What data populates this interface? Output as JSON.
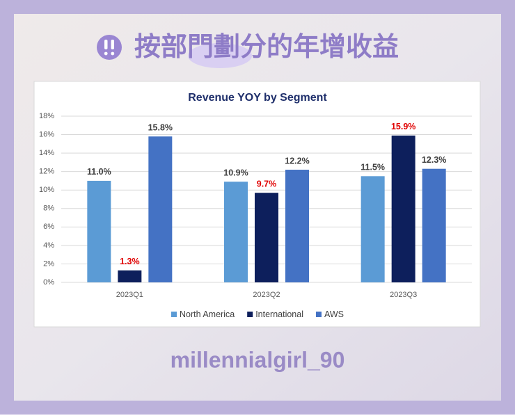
{
  "header": {
    "title": "按部門劃分的年增收益"
  },
  "footer": {
    "handle": "millennialgirl_90"
  },
  "chart_data": {
    "type": "bar",
    "title": "Revenue YOY by Segment",
    "categories": [
      "2023Q1",
      "2023Q2",
      "2023Q3"
    ],
    "series": [
      {
        "name": "North America",
        "color": "#5b9bd5",
        "label_color": "#404040",
        "values": [
          11.0,
          10.9,
          11.5
        ],
        "value_labels": [
          "11.0%",
          "10.9%",
          "11.5%"
        ]
      },
      {
        "name": "International",
        "color": "#0d1f5c",
        "label_color": "#e00000",
        "values": [
          1.3,
          9.7,
          15.9
        ],
        "value_labels": [
          "1.3%",
          "9.7%",
          "15.9%"
        ]
      },
      {
        "name": "AWS",
        "color": "#4472c4",
        "label_color": "#404040",
        "values": [
          15.8,
          12.2,
          12.3
        ],
        "value_labels": [
          "15.8%",
          "12.2%",
          "12.3%"
        ]
      }
    ],
    "ylim": [
      0,
      18
    ],
    "yticks": [
      {
        "value": 0,
        "label": "0%"
      },
      {
        "value": 2,
        "label": "2%"
      },
      {
        "value": 4,
        "label": "4%"
      },
      {
        "value": 6,
        "label": "6%"
      },
      {
        "value": 8,
        "label": "8%"
      },
      {
        "value": 10,
        "label": "10%"
      },
      {
        "value": 12,
        "label": "12%"
      },
      {
        "value": 14,
        "label": "14%"
      },
      {
        "value": 16,
        "label": "16%"
      },
      {
        "value": 18,
        "label": "18%"
      }
    ],
    "grid": true,
    "legend": "bottom"
  }
}
